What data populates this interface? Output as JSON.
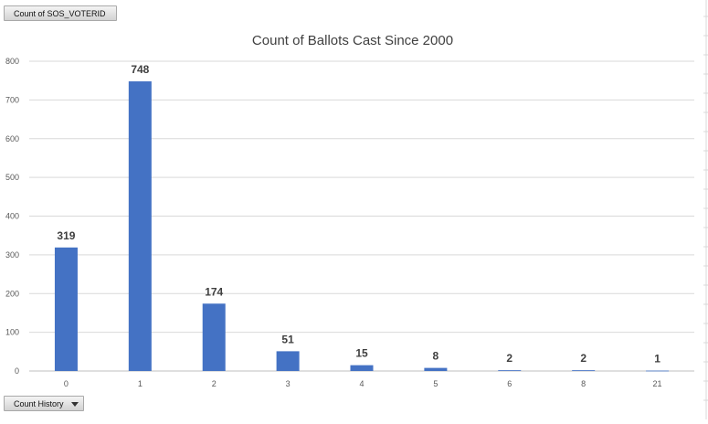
{
  "pivot": {
    "value_field_label": "Count of SOS_VOTERID",
    "axis_field_label": "Count History"
  },
  "chart_data": {
    "type": "bar",
    "title": "Count  of Ballots Cast Since 2000",
    "xlabel": "",
    "ylabel": "",
    "categories": [
      "0",
      "1",
      "2",
      "3",
      "4",
      "5",
      "6",
      "8",
      "21"
    ],
    "values": [
      319,
      748,
      174,
      51,
      15,
      8,
      2,
      2,
      1
    ],
    "ylim": [
      0,
      800
    ],
    "yticks": [
      0,
      100,
      200,
      300,
      400,
      500,
      600,
      700,
      800
    ],
    "grid": true,
    "legend": "none",
    "data_labels": true,
    "bar_color": "#4472c4"
  }
}
